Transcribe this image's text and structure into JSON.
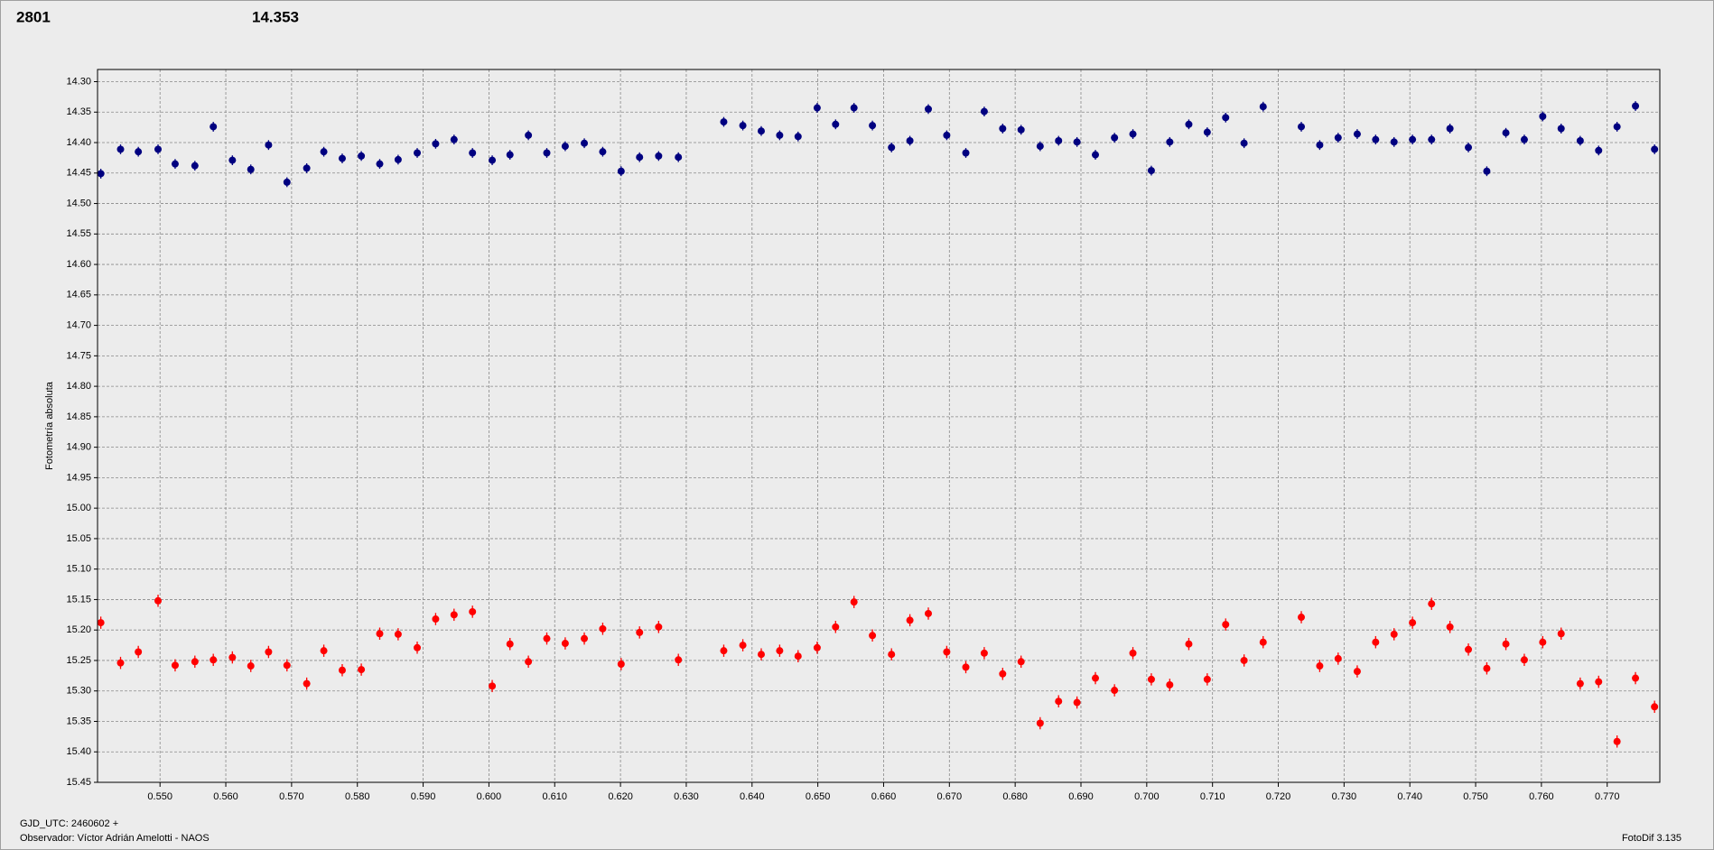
{
  "chart_data": {
    "type": "scatter",
    "annotations": [
      {
        "text": "2801",
        "color": "#ff0000"
      },
      {
        "text": "14.353",
        "color": "#000080"
      },
      {
        "text": "Observador: Víctor Adrián Amelotti - NAOS"
      },
      {
        "text": "FotoDif 3.135"
      }
    ],
    "xlabel": "GJD_UTC: 2460602 +",
    "ylabel": "Fotometría absoluta",
    "xlim": [
      0.5405,
      0.778
    ],
    "ylim": [
      15.45,
      14.28
    ],
    "grid": true,
    "xticks": [
      {
        "value": 0.55,
        "label": "0.550"
      },
      {
        "value": 0.56,
        "label": "0.560"
      },
      {
        "value": 0.57,
        "label": "0.570"
      },
      {
        "value": 0.58,
        "label": "0.580"
      },
      {
        "value": 0.59,
        "label": "0.590"
      },
      {
        "value": 0.6,
        "label": "0.600"
      },
      {
        "value": 0.61,
        "label": "0.610"
      },
      {
        "value": 0.62,
        "label": "0.620"
      },
      {
        "value": 0.63,
        "label": "0.630"
      },
      {
        "value": 0.64,
        "label": "0.640"
      },
      {
        "value": 0.65,
        "label": "0.650"
      },
      {
        "value": 0.66,
        "label": "0.660"
      },
      {
        "value": 0.67,
        "label": "0.670"
      },
      {
        "value": 0.68,
        "label": "0.680"
      },
      {
        "value": 0.69,
        "label": "0.690"
      },
      {
        "value": 0.7,
        "label": "0.700"
      },
      {
        "value": 0.71,
        "label": "0.710"
      },
      {
        "value": 0.72,
        "label": "0.720"
      },
      {
        "value": 0.73,
        "label": "0.730"
      },
      {
        "value": 0.74,
        "label": "0.740"
      },
      {
        "value": 0.75,
        "label": "0.750"
      },
      {
        "value": 0.76,
        "label": "0.760"
      },
      {
        "value": 0.77,
        "label": "0.770"
      }
    ],
    "yticks": [
      {
        "value": 14.3,
        "label": "14.30"
      },
      14.35,
      {
        "value": 14.4,
        "label": "14.40"
      },
      14.45,
      {
        "value": 14.5,
        "label": "14.50"
      },
      14.55,
      {
        "value": 14.6,
        "label": "14.60"
      },
      14.65,
      {
        "value": 14.7,
        "label": "14.70"
      },
      14.75,
      {
        "value": 14.8,
        "label": "14.80"
      },
      14.85,
      {
        "value": 14.9,
        "label": "14.90"
      },
      14.95,
      {
        "value": 15,
        "label": "15.00"
      },
      15.05,
      {
        "value": 15.1,
        "label": "15.10"
      },
      15.15,
      {
        "value": 15.2,
        "label": "15.20"
      },
      15.25,
      {
        "value": 15.3,
        "label": "15.30"
      },
      15.35,
      {
        "value": 15.4,
        "label": "15.40"
      },
      15.45
    ],
    "x": [
      0.541,
      0.544,
      0.5467,
      0.5497,
      0.5523,
      0.5553,
      0.5581,
      0.561,
      0.5638,
      0.5665,
      0.5693,
      0.5723,
      0.5749,
      0.5777,
      0.5806,
      0.5834,
      0.5862,
      0.5891,
      0.5919,
      0.5947,
      0.5975,
      0.6005,
      0.6032,
      0.606,
      0.6088,
      0.6116,
      0.6145,
      0.6173,
      0.6201,
      0.6229,
      0.6258,
      0.6288,
      0.6357,
      0.6386,
      0.6414,
      0.6442,
      0.647,
      0.6499,
      0.6527,
      0.6555,
      0.6583,
      0.6612,
      0.664,
      0.6668,
      0.6696,
      0.6725,
      0.6753,
      0.6781,
      0.6809,
      0.6838,
      0.6866,
      0.6894,
      0.6922,
      0.6951,
      0.6979,
      0.7007,
      0.7035,
      0.7064,
      0.7092,
      0.712,
      0.7148,
      0.7177,
      0.7235,
      0.7263,
      0.7291,
      0.732,
      0.7348,
      0.7376,
      0.7404,
      0.7433,
      0.7461,
      0.7489,
      0.7517,
      0.7546,
      0.7574,
      0.7602,
      0.763,
      0.7659,
      0.7687,
      0.7715,
      0.7743,
      0.7772
    ],
    "series": [
      {
        "color": "#000080",
        "error": 0.008,
        "values": [
          14.451,
          14.411,
          14.415,
          14.411,
          14.435,
          14.438,
          14.374,
          14.429,
          14.444,
          14.404,
          14.465,
          14.442,
          14.415,
          14.426,
          14.422,
          14.435,
          14.428,
          14.417,
          14.402,
          14.395,
          14.417,
          14.429,
          14.42,
          14.388,
          14.417,
          14.406,
          14.401,
          14.415,
          14.447,
          14.424,
          14.422,
          14.424,
          14.366,
          14.372,
          14.381,
          14.388,
          14.39,
          14.343,
          14.37,
          14.343,
          14.372,
          14.408,
          14.397,
          14.345,
          14.388,
          14.417,
          14.349,
          14.377,
          14.379,
          14.406,
          14.397,
          14.399,
          14.42,
          14.392,
          14.386,
          14.446,
          14.399,
          14.37,
          14.383,
          14.359,
          14.401,
          14.341,
          14.374,
          14.404,
          14.392,
          14.386,
          14.395,
          14.399,
          14.395,
          14.395,
          14.377,
          14.408,
          14.447,
          14.384,
          14.395,
          14.357,
          14.377,
          14.397,
          14.413,
          14.374,
          14.34,
          14.411
        ]
      },
      {
        "color": "#ff0000",
        "error": 0.01,
        "values": [
          15.188,
          15.254,
          15.236,
          15.152,
          15.258,
          15.252,
          15.249,
          15.245,
          15.259,
          15.236,
          15.258,
          15.288,
          15.234,
          15.266,
          15.265,
          15.206,
          15.207,
          15.229,
          15.182,
          15.175,
          15.17,
          15.292,
          15.223,
          15.252,
          15.214,
          15.222,
          15.214,
          15.198,
          15.256,
          15.204,
          15.195,
          15.249,
          15.234,
          15.225,
          15.24,
          15.234,
          15.243,
          15.229,
          15.195,
          15.154,
          15.209,
          15.24,
          15.184,
          15.173,
          15.236,
          15.261,
          15.238,
          15.272,
          15.252,
          15.353,
          15.317,
          15.319,
          15.279,
          15.299,
          15.238,
          15.281,
          15.29,
          15.223,
          15.281,
          15.191,
          15.25,
          15.22,
          15.179,
          15.259,
          15.247,
          15.268,
          15.22,
          15.207,
          15.188,
          15.157,
          15.195,
          15.232,
          15.263,
          15.223,
          15.249,
          15.22,
          15.206,
          15.288,
          15.285,
          15.383,
          15.279,
          15.326
        ]
      }
    ]
  }
}
